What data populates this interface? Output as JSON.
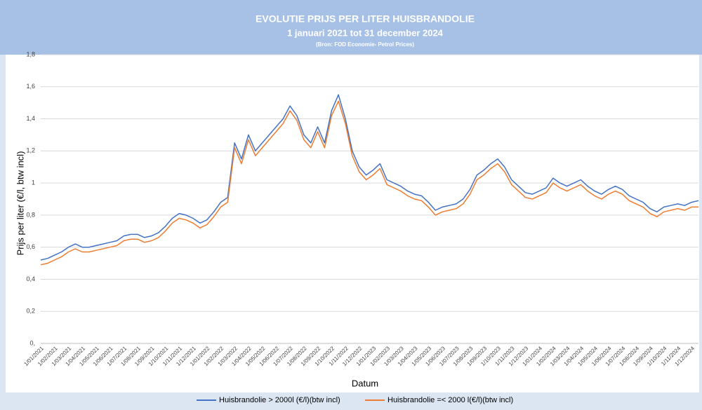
{
  "chart_data": {
    "type": "line",
    "title": "EVOLUTIE PRIJS PER LITER HUISBRANDOLIE",
    "subtitle": "1 januari 2021 tot 31 december 2024",
    "source": "(Bron: FOD Economie- Petrol Prices)",
    "y_label": "Prijs per liter (€/l, btw incl)",
    "x_label": "Datum",
    "categories": [
      "1/01/2021",
      null,
      "1/02/2021",
      null,
      "1/03/2021",
      null,
      "1/04/2021",
      null,
      "1/05/2021",
      null,
      "1/06/2021",
      null,
      "1/07/2021",
      null,
      "1/08/2021",
      null,
      "1/09/2021",
      null,
      "1/10/2021",
      null,
      "1/11/2021",
      null,
      "1/12/2021",
      null,
      "1/01/2022",
      null,
      "1/02/2022",
      null,
      "1/03/2022",
      null,
      "1/04/2022",
      null,
      "1/05/2022",
      null,
      "1/06/2022",
      null,
      "1/07/2022",
      null,
      "1/08/2022",
      null,
      "1/09/2022",
      null,
      "1/10/2022",
      null,
      "1/11/2022",
      null,
      "1/12/2022",
      null,
      "1/01/2023",
      null,
      "1/02/2023",
      null,
      "1/03/2023",
      null,
      "1/04/2023",
      null,
      "1/05/2023",
      null,
      "1/06/2023",
      null,
      "1/07/2023",
      null,
      "1/08/2023",
      null,
      "1/09/2023",
      null,
      "1/10/2023",
      null,
      "1/11/2023",
      null,
      "1/12/2023",
      null,
      "1/01/2024",
      null,
      "1/02/2024",
      null,
      "1/03/2024",
      null,
      "1/04/2024",
      null,
      "1/05/2024",
      null,
      "1/06/2024",
      null,
      "1/07/2024",
      null,
      "1/08/2024",
      null,
      "1/09/2024",
      null,
      "1/10/2024",
      null,
      "1/11/2024",
      null,
      "1/12/2024",
      null
    ],
    "series": [
      {
        "name": "Huisbrandolie > 2000l (€/l)(btw incl)",
        "color": "#4472c4",
        "values": [
          0.52,
          0.53,
          0.55,
          0.57,
          0.6,
          0.62,
          0.6,
          0.6,
          0.61,
          0.62,
          0.63,
          0.64,
          0.67,
          0.68,
          0.68,
          0.66,
          0.67,
          0.69,
          0.73,
          0.78,
          0.81,
          0.8,
          0.78,
          0.75,
          0.77,
          0.82,
          0.88,
          0.91,
          1.25,
          1.15,
          1.3,
          1.2,
          1.25,
          1.3,
          1.35,
          1.4,
          1.48,
          1.42,
          1.3,
          1.25,
          1.35,
          1.25,
          1.45,
          1.55,
          1.4,
          1.2,
          1.1,
          1.05,
          1.08,
          1.12,
          1.02,
          1.0,
          0.98,
          0.95,
          0.93,
          0.92,
          0.88,
          0.83,
          0.85,
          0.86,
          0.87,
          0.9,
          0.96,
          1.05,
          1.08,
          1.12,
          1.15,
          1.1,
          1.02,
          0.98,
          0.94,
          0.93,
          0.95,
          0.97,
          1.03,
          1.0,
          0.98,
          1.0,
          1.02,
          0.98,
          0.95,
          0.93,
          0.96,
          0.98,
          0.96,
          0.92,
          0.9,
          0.88,
          0.84,
          0.82,
          0.85,
          0.86,
          0.87,
          0.86,
          0.88,
          0.89
        ]
      },
      {
        "name": "Huisbrandolie =< 2000 l(€/l)(btw incl)",
        "color": "#ed7d31",
        "values": [
          0.49,
          0.5,
          0.52,
          0.54,
          0.57,
          0.59,
          0.57,
          0.57,
          0.58,
          0.59,
          0.6,
          0.61,
          0.64,
          0.65,
          0.65,
          0.63,
          0.64,
          0.66,
          0.7,
          0.75,
          0.78,
          0.77,
          0.75,
          0.72,
          0.74,
          0.79,
          0.85,
          0.88,
          1.22,
          1.12,
          1.27,
          1.17,
          1.22,
          1.27,
          1.32,
          1.37,
          1.45,
          1.39,
          1.27,
          1.22,
          1.32,
          1.22,
          1.42,
          1.51,
          1.37,
          1.17,
          1.07,
          1.02,
          1.05,
          1.09,
          0.99,
          0.97,
          0.95,
          0.92,
          0.9,
          0.89,
          0.85,
          0.8,
          0.82,
          0.83,
          0.84,
          0.87,
          0.93,
          1.02,
          1.05,
          1.09,
          1.12,
          1.07,
          0.99,
          0.95,
          0.91,
          0.9,
          0.92,
          0.94,
          1.0,
          0.97,
          0.95,
          0.97,
          0.99,
          0.95,
          0.92,
          0.9,
          0.93,
          0.95,
          0.93,
          0.89,
          0.87,
          0.85,
          0.81,
          0.79,
          0.82,
          0.83,
          0.84,
          0.83,
          0.85,
          0.85
        ]
      }
    ],
    "ylim": [
      0,
      1.8
    ],
    "yticks": [
      {
        "value": 0,
        "label": "0,"
      },
      {
        "value": 0.2,
        "label": "0,2"
      },
      {
        "value": 0.4,
        "label": "0,4"
      },
      {
        "value": 0.6,
        "label": "0,6"
      },
      {
        "value": 0.8,
        "label": "0,8"
      },
      1,
      {
        "value": 1.2,
        "label": "1,2"
      },
      {
        "value": 1.4,
        "label": "1,4"
      },
      {
        "value": 1.6,
        "label": "1,6"
      },
      {
        "value": 1.8,
        "label": "1,8"
      }
    ],
    "grid": true,
    "legend": "bottom"
  }
}
